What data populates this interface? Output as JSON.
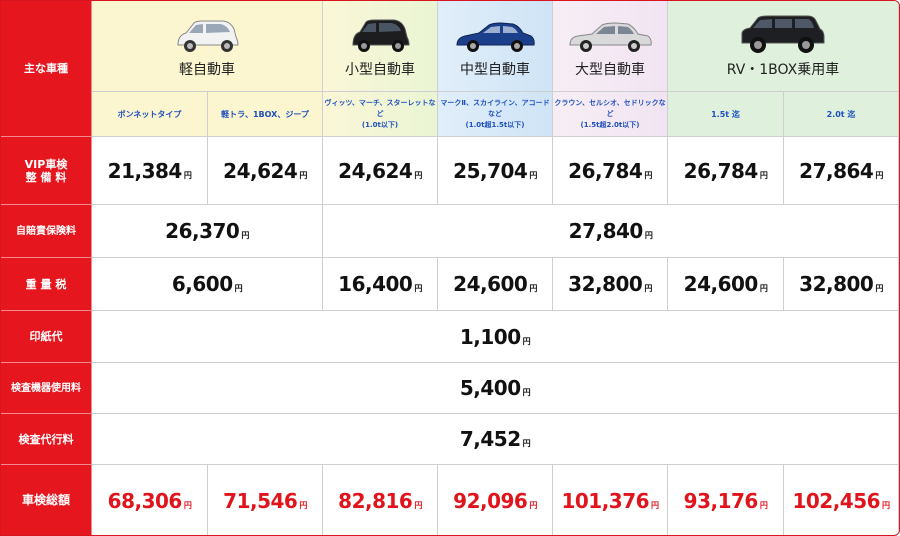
{
  "headers": {
    "corner": "主な車種",
    "groups": [
      {
        "label": "軽自動車"
      },
      {
        "label": "小型自動車"
      },
      {
        "label": "中型自動車"
      },
      {
        "label": "大型自動車"
      },
      {
        "label": "RV・1BOX乗用車"
      }
    ],
    "subs": [
      {
        "text": "ボンネットタイプ",
        "note": ""
      },
      {
        "text": "軽トラ、1BOX、ジープ",
        "note": ""
      },
      {
        "text": "ヴィッツ、マーチ、スターレットなど",
        "note": "(1.0t以下)"
      },
      {
        "text": "マークⅡ、スカイライン、アコードなど",
        "note": "(1.0t超1.5t以下)"
      },
      {
        "text": "クラウン、セルシオ、セドリックなど",
        "note": "(1.5t超2.0t以下)"
      },
      {
        "text": "1.5t 迄",
        "note": ""
      },
      {
        "text": "2.0t 迄",
        "note": ""
      }
    ]
  },
  "unit": "円",
  "rows": {
    "vip": {
      "label": "VIP車検\n整 備 料",
      "values": [
        "21,384",
        "24,624",
        "24,624",
        "25,704",
        "26,784",
        "26,784",
        "27,864"
      ]
    },
    "jibai": {
      "label": "自賠責保険料",
      "values": [
        "26,370",
        "27,840"
      ]
    },
    "juryo": {
      "label": "重 量 税",
      "values": [
        "6,600",
        "16,400",
        "24,600",
        "32,800",
        "24,600",
        "32,800"
      ]
    },
    "inshi": {
      "label": "印紙代",
      "value": "1,100"
    },
    "kiki": {
      "label": "検査機器使用料",
      "value": "5,400"
    },
    "daiko": {
      "label": "検査代行料",
      "value": "7,452"
    },
    "total": {
      "label": "車検総額",
      "values": [
        "68,306",
        "71,546",
        "82,816",
        "92,096",
        "101,376",
        "93,176",
        "102,456"
      ]
    }
  },
  "colors": {
    "row_header_bg": "#e5161e",
    "total_text": "#e0141c",
    "sub_text": "#1f4fbf"
  },
  "icons": [
    "car-white-kei-icon",
    "car-black-compact-icon",
    "car-blue-sedan-icon",
    "car-silver-sedan-icon",
    "car-black-suv-icon"
  ]
}
